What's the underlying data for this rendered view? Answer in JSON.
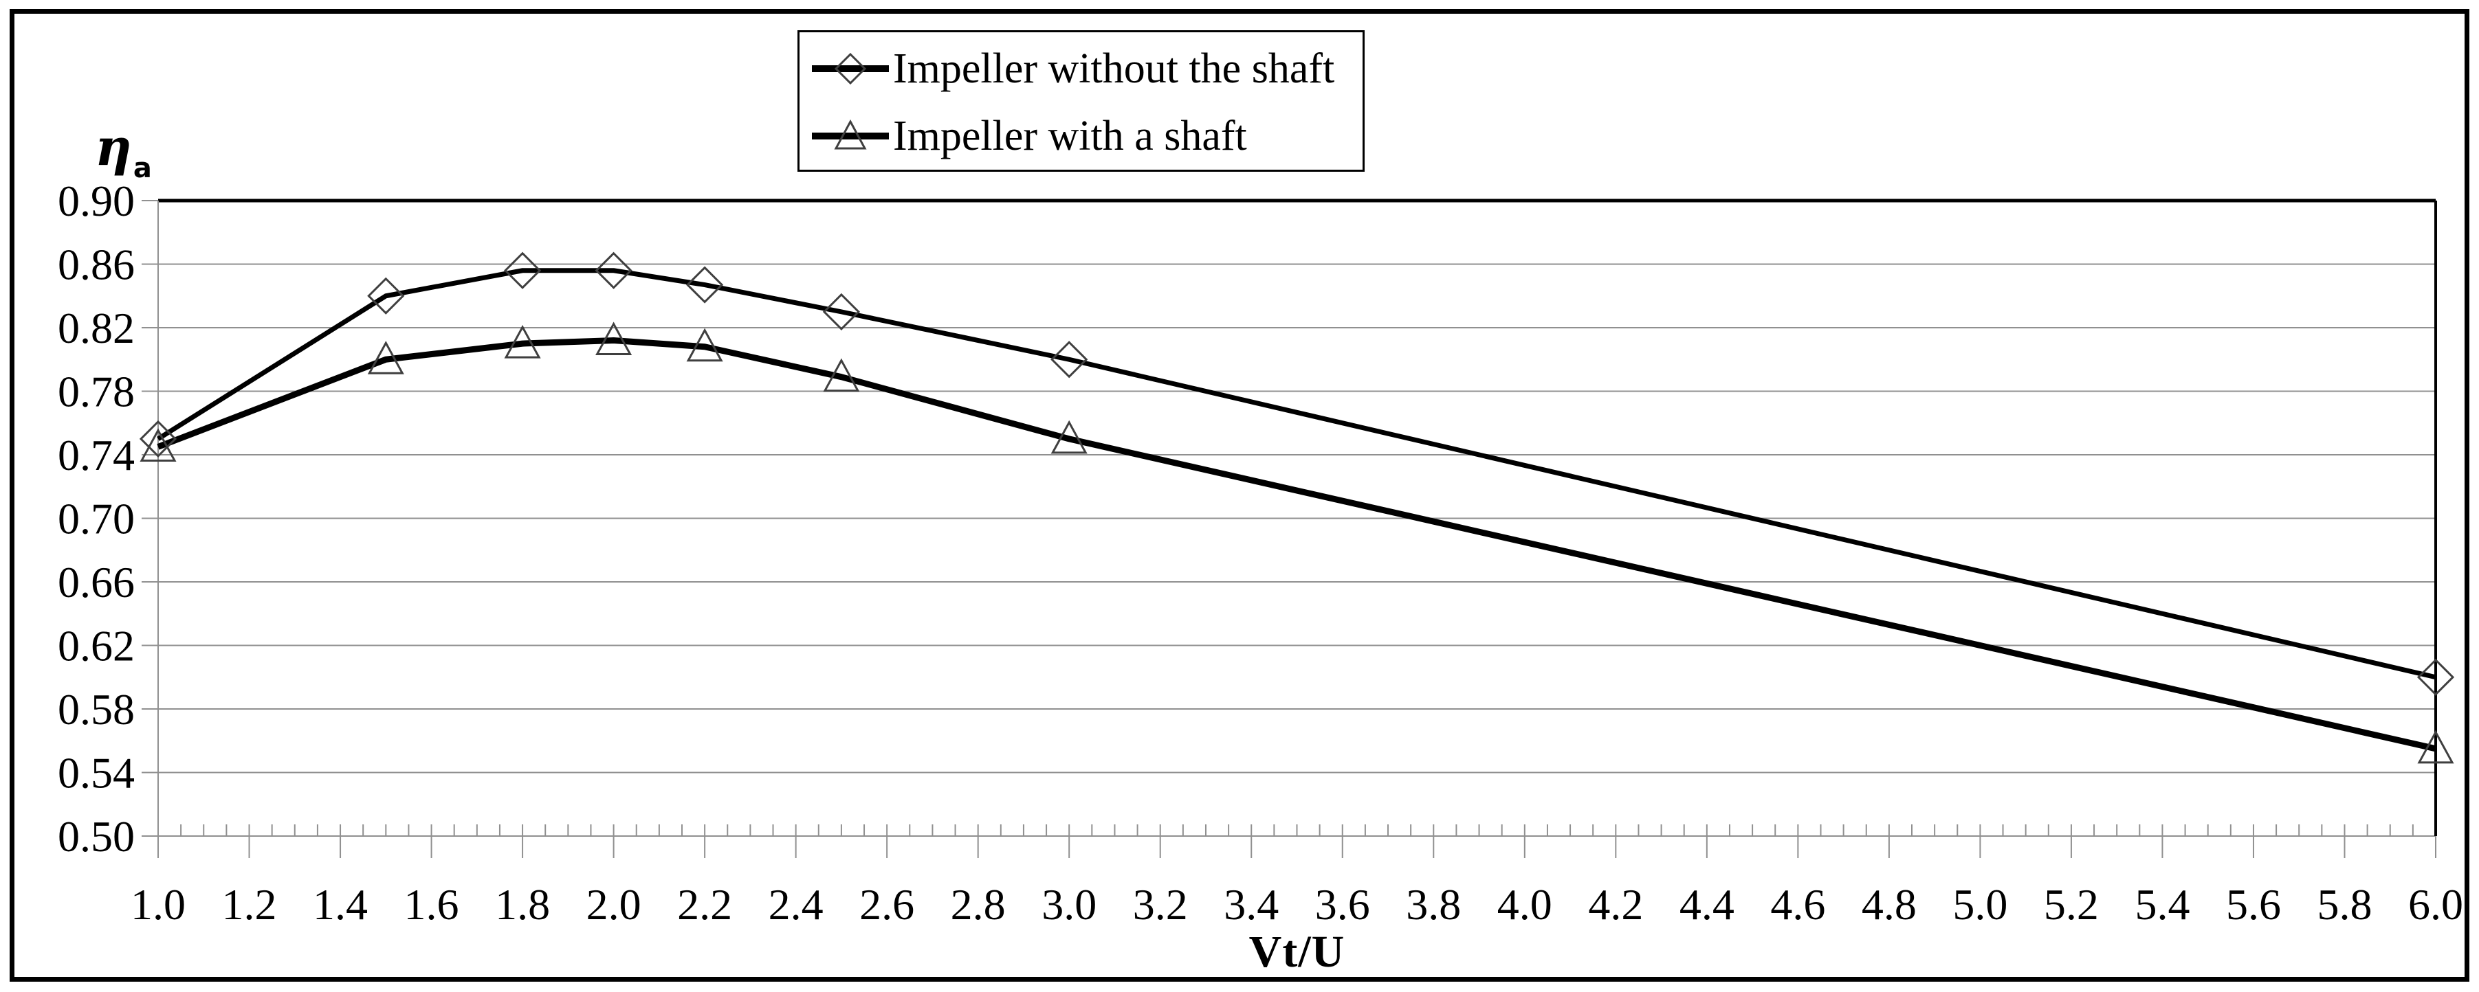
{
  "figure": {
    "y_axis_title": "η",
    "y_axis_title_sub": "a",
    "x_axis_title": "Vt/U"
  },
  "legend": {
    "items": [
      {
        "label": "Impeller without the shaft",
        "marker": "diamond"
      },
      {
        "label": "Impeller with a shaft",
        "marker": "triangle"
      }
    ]
  },
  "chart_data": {
    "type": "line",
    "title": "",
    "xlabel": "Vt/U",
    "ylabel": "ηa",
    "x": [
      1.0,
      1.5,
      1.8,
      2.0,
      2.2,
      2.5,
      3.0,
      6.0
    ],
    "series": [
      {
        "name": "Impeller without the shaft",
        "marker": "diamond",
        "values": [
          0.75,
          0.84,
          0.856,
          0.856,
          0.847,
          0.83,
          0.8,
          0.6
        ]
      },
      {
        "name": "Impeller with a shaft",
        "marker": "triangle",
        "values": [
          0.745,
          0.8,
          0.81,
          0.812,
          0.808,
          0.789,
          0.75,
          0.555
        ]
      }
    ],
    "xlim": [
      1.0,
      6.0
    ],
    "ylim": [
      0.5,
      0.9
    ],
    "x_tick_step": 0.2,
    "x_minor_tick_step": 0.05,
    "y_tick_step": 0.04,
    "x_tick_labels": [
      "1.0",
      "1.2",
      "1.4",
      "1.6",
      "1.8",
      "2.0",
      "2.2",
      "2.4",
      "2.6",
      "2.8",
      "3.0",
      "3.2",
      "3.4",
      "3.6",
      "3.8",
      "4.0",
      "4.2",
      "4.4",
      "4.6",
      "4.8",
      "5.0",
      "5.2",
      "5.4",
      "5.6",
      "5.8",
      "6.0"
    ],
    "y_tick_labels": [
      "0.90",
      "0.86",
      "0.82",
      "0.78",
      "0.74",
      "0.70",
      "0.66",
      "0.62",
      "0.58",
      "0.54",
      "0.50"
    ],
    "grid": "horizontal",
    "legend_position": "top-center",
    "colors": {
      "series_line": "#000000",
      "marker_outline": "#3f3f3f",
      "gridline": "#909090",
      "axis": "#909090",
      "plot_border": "#000000",
      "background": "#ffffff"
    }
  }
}
